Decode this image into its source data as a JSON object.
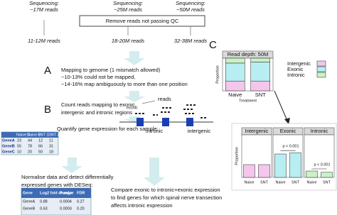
{
  "sequencing": [
    {
      "label": "Sequencing:",
      "reads": "~17M reads"
    },
    {
      "label": "Sequencing:",
      "reads": "~25M reads"
    },
    {
      "label": "Sequencing:",
      "reads": "~50M reads"
    }
  ],
  "qc_box": "Remove reads not passing QC",
  "after_qc": [
    "11-12M reads",
    "18-20M reads",
    "32-38M reads"
  ],
  "step_a": {
    "letter": "A",
    "lines": [
      "Mapping to genome (1 mismatch allowed)",
      "~10-13% could not be mapped,",
      "~14-16% map ambiguously to more than one position"
    ]
  },
  "step_b": {
    "letter": "B",
    "lines": [
      "Count reads mapping to exonic,",
      "intergenic and intronic regions"
    ]
  },
  "quantify": "Quantify gene expression for each sample:",
  "count_table": {
    "header": [
      "Naive 1",
      "Naive 2",
      "SNT 1",
      "SNT 2"
    ],
    "rows": [
      [
        "GeneA",
        "23",
        "44",
        "12",
        "11"
      ],
      [
        "GeneB",
        "55",
        "78",
        "66",
        "31"
      ],
      [
        "GeneC",
        "10",
        "20",
        "50",
        "18"
      ]
    ]
  },
  "normalise": [
    "Normalise data and detect differentially",
    "expressed genes with DESeq:"
  ],
  "deseq_table": {
    "header": [
      "Gene",
      "Log2 fold change",
      "P-value",
      "FDR"
    ],
    "rows": [
      [
        "GeneA",
        "0.88",
        "0.0004",
        "0.27"
      ],
      [
        "GeneB",
        "0.63",
        "0.0003",
        "0.20"
      ]
    ]
  },
  "compare": [
    "Compare exonic to intronic+exonic expression",
    "to find genes for which spinal nerve transection",
    "affects intronic expression"
  ],
  "gene_model": {
    "reads": "reads",
    "exonic": "exonic",
    "intronic": "intronic",
    "intergenic": "intergenic"
  },
  "panel_c": {
    "type": "bar",
    "letter": "C",
    "title": "Read depth: 50M",
    "ylabel": "Proportion",
    "xlabel": "Treatment",
    "categories": [
      "Naive",
      "SNT"
    ],
    "ylim": [
      0,
      1
    ],
    "series": [
      {
        "name": "Intergenic",
        "color": "#f5c6ec",
        "values": [
          0.3,
          0.3
        ]
      },
      {
        "name": "Exonic",
        "color": "#b8eef2",
        "values": [
          0.55,
          0.58
        ]
      },
      {
        "name": "Intronic",
        "color": "#c9f2c4",
        "values": [
          0.15,
          0.12
        ]
      }
    ]
  },
  "panel_facets": {
    "type": "bar",
    "ylabel": "Proportion",
    "ylim": [
      0,
      1
    ],
    "facets": [
      {
        "name": "Intergenic",
        "color": "#f5c6ec",
        "categories": [
          "Naive",
          "SNT"
        ],
        "values": [
          0.3,
          0.3
        ]
      },
      {
        "name": "Exonic",
        "color": "#b8eef2",
        "categories": [
          "Naive",
          "SNT"
        ],
        "values": [
          0.55,
          0.58
        ],
        "annotation": "p < 0.001"
      },
      {
        "name": "Intronic",
        "color": "#c9f2c4",
        "categories": [
          "Naive",
          "SNT"
        ],
        "values": [
          0.15,
          0.12
        ],
        "annotation": "p < 0.001"
      }
    ]
  }
}
